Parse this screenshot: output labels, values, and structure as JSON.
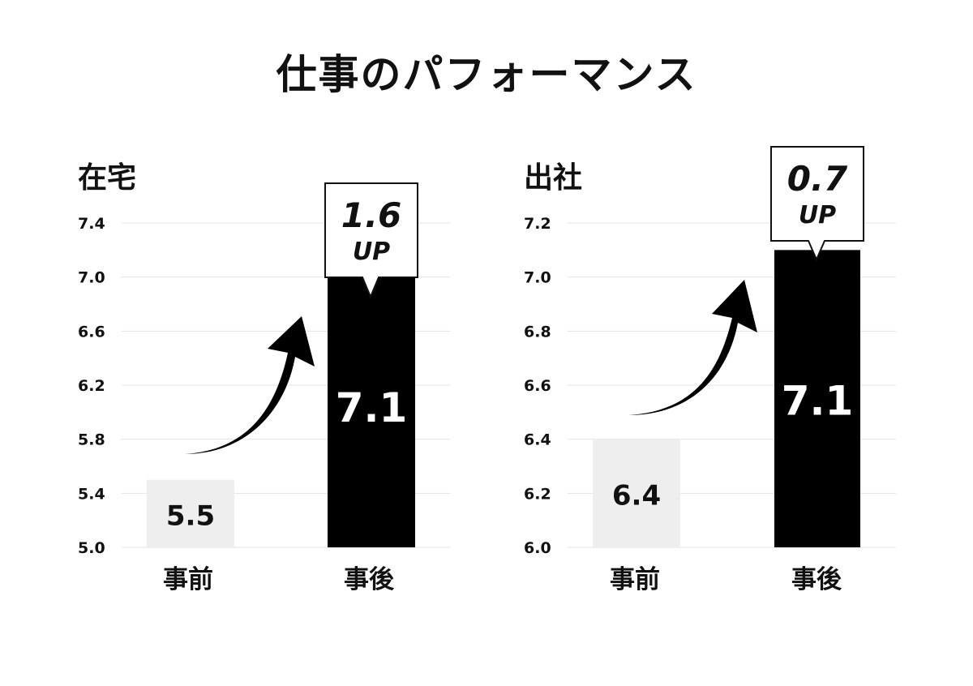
{
  "title": "仕事のパフォーマンス",
  "chart_data": [
    {
      "type": "bar",
      "title": "在宅",
      "categories": [
        "事前",
        "事後"
      ],
      "values": [
        5.5,
        7.1
      ],
      "value_labels": [
        "5.5",
        "7.1"
      ],
      "ylim": [
        5.0,
        7.4
      ],
      "yticks": [
        "5.0",
        "5.4",
        "5.8",
        "6.2",
        "6.6",
        "7.0",
        "7.4"
      ],
      "bar_colors": [
        "#eeeeee",
        "#000000"
      ],
      "label_colors": [
        "#111111",
        "#ffffff"
      ],
      "callout": {
        "value": "1.6",
        "suffix": "UP"
      },
      "grid": true
    },
    {
      "type": "bar",
      "title": "出社",
      "categories": [
        "事前",
        "事後"
      ],
      "values": [
        6.4,
        7.1
      ],
      "value_labels": [
        "6.4",
        "7.1"
      ],
      "ylim": [
        6.0,
        7.2
      ],
      "yticks": [
        "6.0",
        "6.2",
        "6.4",
        "6.6",
        "6.8",
        "7.0",
        "7.2"
      ],
      "bar_colors": [
        "#eeeeee",
        "#000000"
      ],
      "label_colors": [
        "#111111",
        "#ffffff"
      ],
      "callout": {
        "value": "0.7",
        "suffix": "UP"
      },
      "grid": true
    }
  ]
}
